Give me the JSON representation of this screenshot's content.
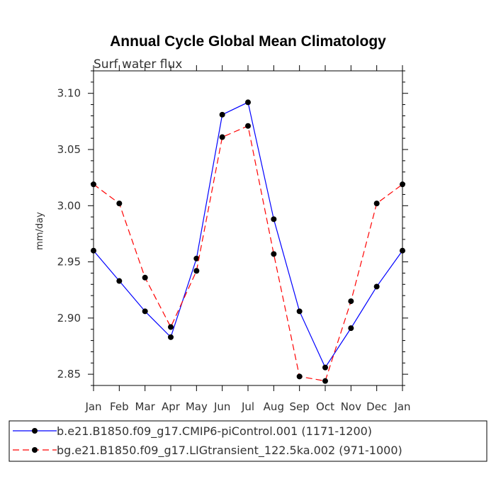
{
  "chart_data": {
    "type": "line",
    "title": "Annual Cycle Global Mean Climatology",
    "subtitle": "Surf water flux",
    "xlabel": "",
    "ylabel": "mm/day",
    "categories": [
      "Jan",
      "Feb",
      "Mar",
      "Apr",
      "May",
      "Jun",
      "Jul",
      "Aug",
      "Sep",
      "Oct",
      "Nov",
      "Dec",
      "Jan"
    ],
    "ylim": [
      2.84,
      3.12
    ],
    "yticks": [
      {
        "value": 2.85,
        "label": "2.85"
      },
      {
        "value": 2.9,
        "label": "2.90"
      },
      {
        "value": 2.95,
        "label": "2.95"
      },
      {
        "value": 3.0,
        "label": "3.00"
      },
      {
        "value": 3.05,
        "label": "3.05"
      },
      {
        "value": 3.1,
        "label": "3.10"
      }
    ],
    "series": [
      {
        "name": "b.e21.B1850.f09_g17.CMIP6-piControl.001 (1171-1200)",
        "color": "#0000ff",
        "dash": "solid",
        "values": [
          2.96,
          2.933,
          2.906,
          2.883,
          2.953,
          3.081,
          3.092,
          2.988,
          2.906,
          2.856,
          2.891,
          2.928,
          2.96
        ]
      },
      {
        "name": "bg.e21.B1850.f09_g17.LIGtransient_122.5ka.002 (971-1000)",
        "color": "#ff0000",
        "dash": "dashed",
        "values": [
          3.019,
          3.002,
          2.936,
          2.892,
          2.942,
          3.061,
          3.071,
          2.957,
          2.848,
          2.844,
          2.915,
          3.002,
          3.019
        ]
      }
    ]
  }
}
